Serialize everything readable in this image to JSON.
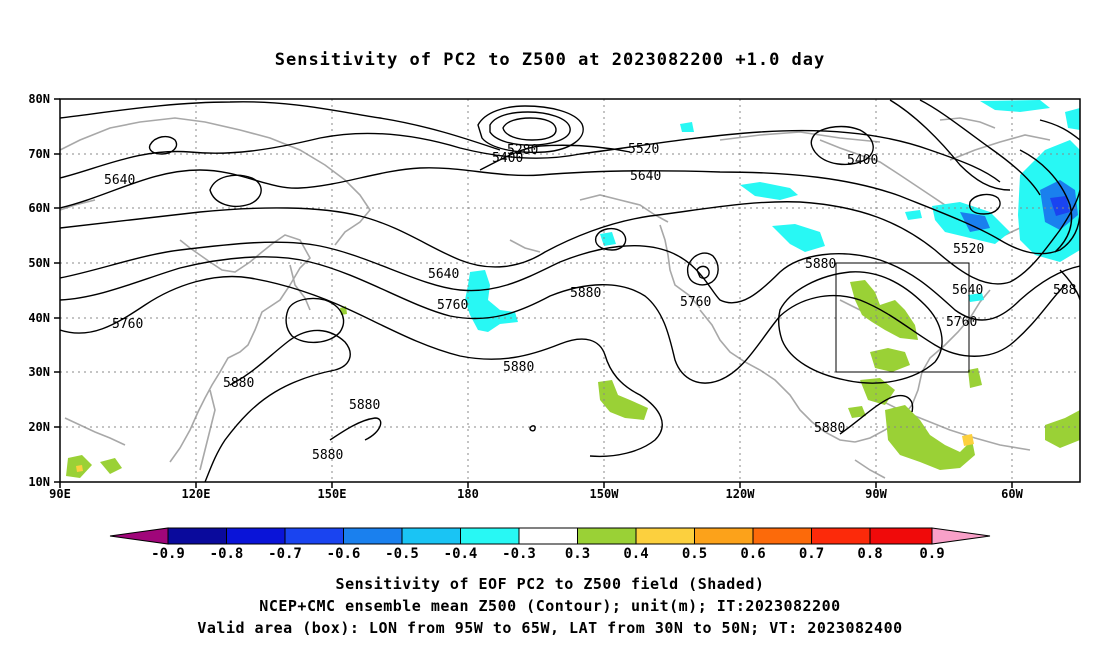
{
  "title": "Sensitivity of PC2 to Z500 at 2023082200 +1.0 day",
  "axes": {
    "lon_ticks": [
      "90E",
      "120E",
      "150E",
      "180",
      "150W",
      "120W",
      "90W",
      "60W"
    ],
    "lat_ticks": [
      "80N",
      "70N",
      "60N",
      "50N",
      "40N",
      "30N",
      "20N",
      "10N"
    ]
  },
  "contour_labels": [
    "5280",
    "5400",
    "5520",
    "5400",
    "5640",
    "5640",
    "5640",
    "5760",
    "5880",
    "5760",
    "5880",
    "5520",
    "5640",
    "5760",
    "588",
    "5760",
    "5880",
    "5880",
    "5880",
    "5880",
    "5880"
  ],
  "valid_box": {
    "lon_west": -95,
    "lon_east": -65,
    "lat_south": 30,
    "lat_north": 50
  },
  "colorbar": {
    "labels": [
      "-0.9",
      "-0.8",
      "-0.7",
      "-0.6",
      "-0.5",
      "-0.4",
      "-0.3",
      "0.3",
      "0.4",
      "0.5",
      "0.6",
      "0.7",
      "0.8",
      "0.9"
    ],
    "colors": [
      "#a0067a",
      "#0a0a9c",
      "#0a14d8",
      "#1a44f0",
      "#1a80ee",
      "#1ac4f4",
      "#28f8f4",
      "#ffffff",
      "#9ad136",
      "#fcd03e",
      "#fca21a",
      "#fc6a0a",
      "#fc2a0a",
      "#f00a0a",
      "#f8a0c8"
    ]
  },
  "captions": [
    "Sensitivity of EOF PC2 to Z500 field (Shaded)",
    "NCEP+CMC ensemble mean Z500 (Contour); unit(m); IT:2023082200",
    "Valid area (box): LON from 95W to 65W, LAT from 30N to 50N; VT: 2023082400"
  ]
}
